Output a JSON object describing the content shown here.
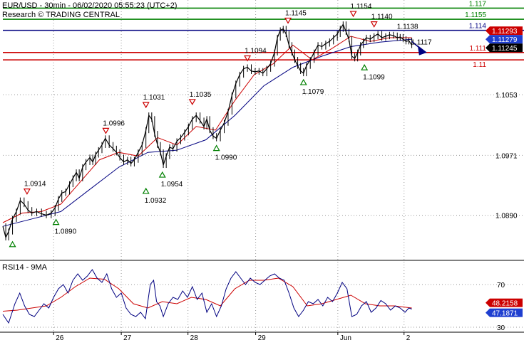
{
  "header": {
    "line1": "EUR/USD - 30min - 06/02/2020 05:55:23 (UTC+2)",
    "line2": "Research © TRADING CENTRAL"
  },
  "colors": {
    "price": "#000000",
    "ma_fast": "#cc0000",
    "ma_slow": "#000080",
    "support": "#cc0000",
    "resistance": "#008000",
    "pivot_line": "#000080",
    "grid": "#9a9a9a",
    "badge_blue": "#1f3fd0",
    "badge_red": "#cc0000",
    "badge_black": "#000000",
    "marker_down": "#cc0000",
    "marker_up": "#008000"
  },
  "chart_data": [
    {
      "type": "line",
      "ylim": [
        1.083,
        1.1181
      ],
      "y_ticks": [
        "1.0890",
        "1.0971",
        "1.1053"
      ],
      "x_ticks": [
        {
          "label": "26",
          "t": 0.105
        },
        {
          "label": "27",
          "t": 0.245
        },
        {
          "label": "28",
          "t": 0.383
        },
        {
          "label": "29",
          "t": 0.523
        },
        {
          "label": "Jun",
          "t": 0.693
        },
        {
          "label": "2",
          "t": 0.83
        }
      ],
      "price": [
        [
          0,
          1.0875
        ],
        [
          0.006,
          1.086
        ],
        [
          0.012,
          1.0868
        ],
        [
          0.02,
          1.0885
        ],
        [
          0.028,
          1.0895
        ],
        [
          0.036,
          1.091
        ],
        [
          0.044,
          1.0905
        ],
        [
          0.052,
          1.0897
        ],
        [
          0.06,
          1.0893
        ],
        [
          0.07,
          1.0895
        ],
        [
          0.08,
          1.0892
        ],
        [
          0.09,
          1.089
        ],
        [
          0.1,
          1.0893
        ],
        [
          0.108,
          1.09
        ],
        [
          0.115,
          1.0912
        ],
        [
          0.122,
          1.092
        ],
        [
          0.13,
          1.0922
        ],
        [
          0.138,
          1.0932
        ],
        [
          0.145,
          1.094
        ],
        [
          0.152,
          1.0948
        ],
        [
          0.158,
          1.094
        ],
        [
          0.165,
          1.0955
        ],
        [
          0.172,
          1.0962
        ],
        [
          0.18,
          1.0968
        ],
        [
          0.186,
          1.0962
        ],
        [
          0.192,
          1.0972
        ],
        [
          0.198,
          1.0978
        ],
        [
          0.205,
          1.0985
        ],
        [
          0.212,
          1.0994
        ],
        [
          0.22,
          1.0985
        ],
        [
          0.228,
          1.098
        ],
        [
          0.235,
          1.0975
        ],
        [
          0.242,
          1.0968
        ],
        [
          0.25,
          1.0962
        ],
        [
          0.258,
          1.0965
        ],
        [
          0.265,
          1.096
        ],
        [
          0.272,
          1.0965
        ],
        [
          0.28,
          1.0975
        ],
        [
          0.288,
          1.0985
        ],
        [
          0.296,
          1.1005
        ],
        [
          0.302,
          1.1025
        ],
        [
          0.308,
          1.102
        ],
        [
          0.314,
          1.1
        ],
        [
          0.32,
          1.0985
        ],
        [
          0.326,
          1.0975
        ],
        [
          0.332,
          1.0958
        ],
        [
          0.338,
          1.097
        ],
        [
          0.345,
          1.0982
        ],
        [
          0.352,
          1.098
        ],
        [
          0.36,
          1.099
        ],
        [
          0.368,
          1.0995
        ],
        [
          0.376,
          1.1002
        ],
        [
          0.384,
          1.101
        ],
        [
          0.392,
          1.102
        ],
        [
          0.4,
          1.1025
        ],
        [
          0.408,
          1.1018
        ],
        [
          0.416,
          1.101
        ],
        [
          0.422,
          1.102
        ],
        [
          0.428,
          1.1005
        ],
        [
          0.435,
          1.0997
        ],
        [
          0.442,
          1.0994
        ],
        [
          0.45,
          1.1005
        ],
        [
          0.458,
          1.1015
        ],
        [
          0.466,
          1.103
        ],
        [
          0.474,
          1.1052
        ],
        [
          0.482,
          1.1068
        ],
        [
          0.49,
          1.108
        ],
        [
          0.498,
          1.1088
        ],
        [
          0.506,
          1.109
        ],
        [
          0.514,
          1.1085
        ],
        [
          0.522,
          1.1084
        ],
        [
          0.53,
          1.1085
        ],
        [
          0.538,
          1.1082
        ],
        [
          0.546,
          1.1088
        ],
        [
          0.554,
          1.1095
        ],
        [
          0.562,
          1.111
        ],
        [
          0.568,
          1.113
        ],
        [
          0.574,
          1.114
        ],
        [
          0.58,
          1.1142
        ],
        [
          0.586,
          1.1135
        ],
        [
          0.592,
          1.112
        ],
        [
          0.598,
          1.111
        ],
        [
          0.604,
          1.11
        ],
        [
          0.61,
          1.1092
        ],
        [
          0.616,
          1.1085
        ],
        [
          0.622,
          1.1082
        ],
        [
          0.628,
          1.1092
        ],
        [
          0.636,
          1.11
        ],
        [
          0.644,
          1.111
        ],
        [
          0.652,
          1.112
        ],
        [
          0.66,
          1.1118
        ],
        [
          0.668,
          1.1122
        ],
        [
          0.676,
          1.1125
        ],
        [
          0.684,
          1.113
        ],
        [
          0.692,
          1.1135
        ],
        [
          0.698,
          1.1142
        ],
        [
          0.704,
          1.1148
        ],
        [
          0.71,
          1.1138
        ],
        [
          0.716,
          1.1128
        ],
        [
          0.722,
          1.1105
        ],
        [
          0.728,
          1.1102
        ],
        [
          0.734,
          1.111
        ],
        [
          0.74,
          1.112
        ],
        [
          0.746,
          1.1125
        ],
        [
          0.752,
          1.113
        ],
        [
          0.76,
          1.1128
        ],
        [
          0.768,
          1.1132
        ],
        [
          0.776,
          1.1135
        ],
        [
          0.784,
          1.113
        ],
        [
          0.792,
          1.1132
        ],
        [
          0.8,
          1.1134
        ],
        [
          0.808,
          1.1133
        ],
        [
          0.816,
          1.113
        ],
        [
          0.822,
          1.1131
        ],
        [
          0.828,
          1.1128
        ],
        [
          0.834,
          1.1125
        ],
        [
          0.84,
          1.1126
        ],
        [
          0.846,
          1.112
        ]
      ],
      "ma_fast": [
        [
          0,
          1.088
        ],
        [
          0.04,
          1.0893
        ],
        [
          0.08,
          1.0895
        ],
        [
          0.12,
          1.0905
        ],
        [
          0.16,
          1.0935
        ],
        [
          0.2,
          1.0965
        ],
        [
          0.24,
          1.0975
        ],
        [
          0.28,
          1.097
        ],
        [
          0.32,
          1.0995
        ],
        [
          0.36,
          1.0985
        ],
        [
          0.4,
          1.101
        ],
        [
          0.44,
          1.1005
        ],
        [
          0.48,
          1.1045
        ],
        [
          0.52,
          1.108
        ],
        [
          0.56,
          1.1095
        ],
        [
          0.6,
          1.112
        ],
        [
          0.64,
          1.11
        ],
        [
          0.68,
          1.1115
        ],
        [
          0.72,
          1.1132
        ],
        [
          0.76,
          1.1125
        ],
        [
          0.8,
          1.113
        ],
        [
          0.846,
          1.113
        ]
      ],
      "ma_slow": [
        [
          0,
          1.0875
        ],
        [
          0.06,
          1.0885
        ],
        [
          0.12,
          1.0895
        ],
        [
          0.18,
          1.0925
        ],
        [
          0.24,
          1.0955
        ],
        [
          0.3,
          1.0975
        ],
        [
          0.36,
          1.0978
        ],
        [
          0.42,
          1.0992
        ],
        [
          0.48,
          1.1025
        ],
        [
          0.54,
          1.1065
        ],
        [
          0.6,
          1.109
        ],
        [
          0.66,
          1.1105
        ],
        [
          0.72,
          1.1118
        ],
        [
          0.78,
          1.1124
        ],
        [
          0.846,
          1.1128
        ]
      ],
      "forecast_arrow": {
        "from": [
          0.846,
          1.1125
        ],
        "to": [
          0.87,
          1.1112
        ]
      },
      "hlines": [
        {
          "value": 1.117,
          "label": "1.117",
          "kind": "resistance"
        },
        {
          "value": 1.1155,
          "label": "1.1155",
          "kind": "resistance"
        },
        {
          "value": 1.114,
          "label": "1.114",
          "kind": "pivot"
        },
        {
          "value": 1.111,
          "label": "1.111",
          "kind": "support"
        },
        {
          "value": 1.11,
          "label": "1.11",
          "kind": "support"
        }
      ],
      "side_badges": [
        {
          "value": 1.11293,
          "label": "1.11293",
          "style": "red"
        },
        {
          "value": 1.11279,
          "label": "1.11279",
          "style": "blue"
        },
        {
          "value": 1.11245,
          "label": "1.11245",
          "style": "black"
        }
      ],
      "annotations": [
        {
          "t": 0.02,
          "value": 1.086,
          "label": "",
          "dir": "up"
        },
        {
          "t": 0.05,
          "value": 1.0914,
          "label": "1.0914",
          "dir": "down"
        },
        {
          "t": 0.11,
          "value": 1.089,
          "label": "1.0890",
          "dir": "up"
        },
        {
          "t": 0.213,
          "value": 1.0996,
          "label": "1.0996",
          "dir": "down"
        },
        {
          "t": 0.296,
          "value": 1.1031,
          "label": "1.1031",
          "dir": "down"
        },
        {
          "t": 0.296,
          "value": 1.0932,
          "label": "1.0932",
          "dir": "up"
        },
        {
          "t": 0.33,
          "value": 1.0954,
          "label": "1.0954",
          "dir": "up"
        },
        {
          "t": 0.392,
          "value": 1.1035,
          "label": "1.1035",
          "dir": "down"
        },
        {
          "t": 0.442,
          "value": 1.099,
          "label": "1.0990",
          "dir": "up"
        },
        {
          "t": 0.506,
          "value": 1.1094,
          "label": "1.1094",
          "dir": "down"
        },
        {
          "t": 0.59,
          "value": 1.1145,
          "label": "1.1145",
          "dir": "down"
        },
        {
          "t": 0.622,
          "value": 1.1079,
          "label": "1.1079",
          "dir": "up"
        },
        {
          "t": 0.725,
          "value": 1.1154,
          "label": "1.1154",
          "dir": "down"
        },
        {
          "t": 0.748,
          "value": 1.1099,
          "label": "1.1099",
          "dir": "up"
        },
        {
          "t": 0.768,
          "value": 1.114,
          "label": "1.1140",
          "dir": "down"
        },
        {
          "t": 0.833,
          "value": 1.1138,
          "label": "1.1138",
          "dir": "none"
        },
        {
          "t": 0.862,
          "value": 1.1117,
          "label": "1.1117",
          "dir": "none"
        }
      ]
    },
    {
      "type": "line",
      "title": "RSI14 - 9MA",
      "ylim": [
        26,
        92
      ],
      "y_ticks": [
        "70",
        "30"
      ],
      "rsi": [
        [
          0,
          42
        ],
        [
          0.012,
          34
        ],
        [
          0.025,
          52
        ],
        [
          0.035,
          62
        ],
        [
          0.045,
          50
        ],
        [
          0.055,
          42
        ],
        [
          0.065,
          40
        ],
        [
          0.075,
          46
        ],
        [
          0.085,
          52
        ],
        [
          0.095,
          48
        ],
        [
          0.105,
          58
        ],
        [
          0.115,
          66
        ],
        [
          0.125,
          70
        ],
        [
          0.135,
          62
        ],
        [
          0.145,
          74
        ],
        [
          0.155,
          80
        ],
        [
          0.165,
          74
        ],
        [
          0.175,
          78
        ],
        [
          0.185,
          84
        ],
        [
          0.195,
          76
        ],
        [
          0.205,
          72
        ],
        [
          0.215,
          80
        ],
        [
          0.225,
          66
        ],
        [
          0.235,
          58
        ],
        [
          0.245,
          62
        ],
        [
          0.255,
          48
        ],
        [
          0.265,
          42
        ],
        [
          0.275,
          40
        ],
        [
          0.285,
          44
        ],
        [
          0.295,
          38
        ],
        [
          0.305,
          70
        ],
        [
          0.312,
          74
        ],
        [
          0.318,
          54
        ],
        [
          0.325,
          50
        ],
        [
          0.332,
          40
        ],
        [
          0.342,
          52
        ],
        [
          0.352,
          58
        ],
        [
          0.362,
          56
        ],
        [
          0.372,
          64
        ],
        [
          0.382,
          58
        ],
        [
          0.392,
          68
        ],
        [
          0.402,
          56
        ],
        [
          0.412,
          62
        ],
        [
          0.422,
          44
        ],
        [
          0.432,
          52
        ],
        [
          0.442,
          40
        ],
        [
          0.452,
          50
        ],
        [
          0.462,
          66
        ],
        [
          0.472,
          76
        ],
        [
          0.482,
          82
        ],
        [
          0.492,
          76
        ],
        [
          0.502,
          70
        ],
        [
          0.512,
          76
        ],
        [
          0.522,
          72
        ],
        [
          0.532,
          70
        ],
        [
          0.542,
          74
        ],
        [
          0.552,
          78
        ],
        [
          0.562,
          80
        ],
        [
          0.572,
          76
        ],
        [
          0.582,
          74
        ],
        [
          0.592,
          62
        ],
        [
          0.602,
          48
        ],
        [
          0.612,
          40
        ],
        [
          0.622,
          46
        ],
        [
          0.632,
          54
        ],
        [
          0.642,
          52
        ],
        [
          0.652,
          56
        ],
        [
          0.662,
          50
        ],
        [
          0.672,
          58
        ],
        [
          0.682,
          54
        ],
        [
          0.692,
          62
        ],
        [
          0.702,
          72
        ],
        [
          0.712,
          66
        ],
        [
          0.722,
          40
        ],
        [
          0.732,
          42
        ],
        [
          0.742,
          50
        ],
        [
          0.752,
          54
        ],
        [
          0.762,
          44
        ],
        [
          0.772,
          48
        ],
        [
          0.782,
          55
        ],
        [
          0.792,
          52
        ],
        [
          0.802,
          46
        ],
        [
          0.812,
          50
        ],
        [
          0.822,
          48
        ],
        [
          0.832,
          44
        ],
        [
          0.84,
          48
        ],
        [
          0.846,
          47
        ]
      ],
      "rsi_ma": [
        [
          0,
          45
        ],
        [
          0.03,
          46
        ],
        [
          0.06,
          48
        ],
        [
          0.09,
          50
        ],
        [
          0.12,
          58
        ],
        [
          0.15,
          68
        ],
        [
          0.18,
          76
        ],
        [
          0.21,
          75
        ],
        [
          0.24,
          66
        ],
        [
          0.27,
          52
        ],
        [
          0.3,
          48
        ],
        [
          0.33,
          54
        ],
        [
          0.36,
          52
        ],
        [
          0.39,
          58
        ],
        [
          0.42,
          56
        ],
        [
          0.45,
          50
        ],
        [
          0.48,
          66
        ],
        [
          0.51,
          74
        ],
        [
          0.54,
          74
        ],
        [
          0.57,
          76
        ],
        [
          0.6,
          68
        ],
        [
          0.63,
          50
        ],
        [
          0.66,
          52
        ],
        [
          0.69,
          56
        ],
        [
          0.72,
          60
        ],
        [
          0.75,
          52
        ],
        [
          0.78,
          50
        ],
        [
          0.81,
          50
        ],
        [
          0.846,
          48
        ]
      ],
      "side_badges": [
        {
          "value": 48.2158,
          "label": "48.2158",
          "style": "red"
        },
        {
          "value": 47.1871,
          "label": "47.1871",
          "style": "blue"
        }
      ]
    }
  ]
}
